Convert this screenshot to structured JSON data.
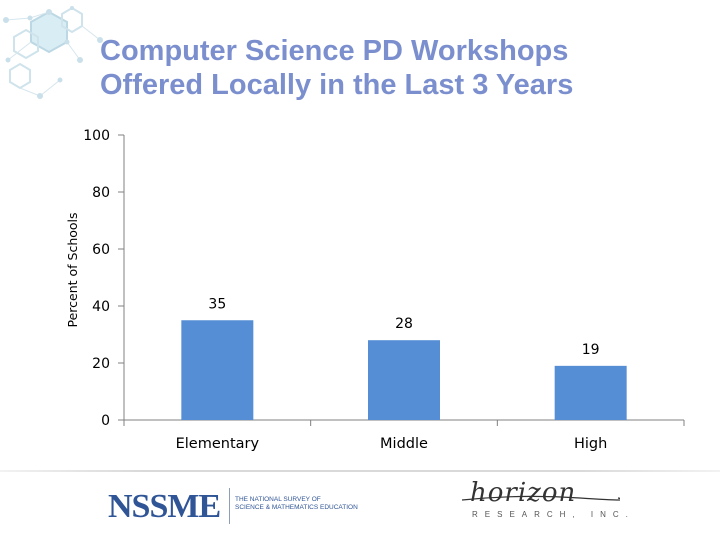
{
  "slide": {
    "title_line1": "Computer Science PD Workshops",
    "title_line2": "Offered Locally in the Last 3 Years"
  },
  "chart_data": {
    "type": "bar",
    "title": "",
    "xlabel": "",
    "ylabel": "Percent of Schools",
    "categories": [
      "Elementary",
      "Middle",
      "High"
    ],
    "values": [
      35,
      28,
      19
    ],
    "data_labels": [
      "35",
      "28",
      "19"
    ],
    "ylim": [
      0,
      100
    ],
    "yticks": [
      0,
      20,
      40,
      60,
      80,
      100
    ],
    "grid": false,
    "legend": "none",
    "bar_color": "#558ed5"
  },
  "footer": {
    "nssme_logo": "NSSME",
    "nssme_tagline_1": "THE NATIONAL SURVEY OF",
    "nssme_tagline_2": "SCIENCE & MATHEMATICS EDUCATION",
    "horizon_logo": "horizon",
    "horizon_tagline": "RESEARCH, INC."
  },
  "colors": {
    "title": "#7b8fce",
    "axis": "#808080",
    "text": "#000000",
    "logo_blue": "#2f5597"
  }
}
